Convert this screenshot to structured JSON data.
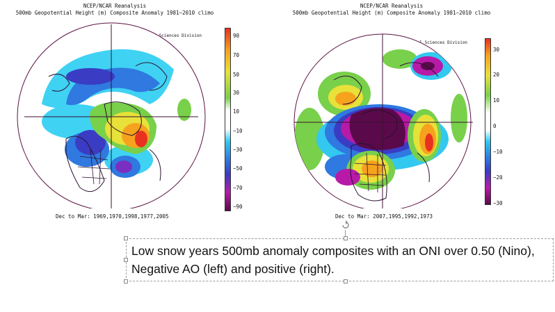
{
  "left_map": {
    "title_line1": "NCEP/NCAR Reanalysis",
    "title_line2": "500mb Geopotential Height (m) Composite Anomaly 1981–2010 climo",
    "credit": "NOAA/ESRL Physical Sciences Division",
    "dates": "Dec to Mar: 1969,1970,1998,1977,2005",
    "colorbar_ticks": [
      "90",
      "70",
      "50",
      "30",
      "10",
      "−10",
      "−30",
      "−50",
      "−70",
      "−90"
    ]
  },
  "right_map": {
    "title_line1": "NCEP/NCAR Reanalysis",
    "title_line2": "500mb Geopotential Height (m) Composite Anomaly 1981–2010 climo",
    "credit": "NOAA/ESRL Physical Sciences Division",
    "dates": "Dec to Mar: 2007,1995,1992,1973",
    "colorbar_ticks": [
      "30",
      "20",
      "10",
      "0",
      "−10",
      "−20",
      "−30"
    ]
  },
  "caption": {
    "text": "Low snow years 500mb anomaly composites with an ONI over 0.50 (Nino), Negative AO (left) and positive (right)."
  },
  "colors": {
    "purple_dark": "#5a0a4a",
    "magenta": "#b81aa8",
    "blue_dark": "#3a3cc4",
    "blue": "#2f79e0",
    "cyan": "#33c8f0",
    "green": "#79d04a",
    "yellow": "#e7e13a",
    "orange": "#f6a21e",
    "red": "#e8321f"
  }
}
